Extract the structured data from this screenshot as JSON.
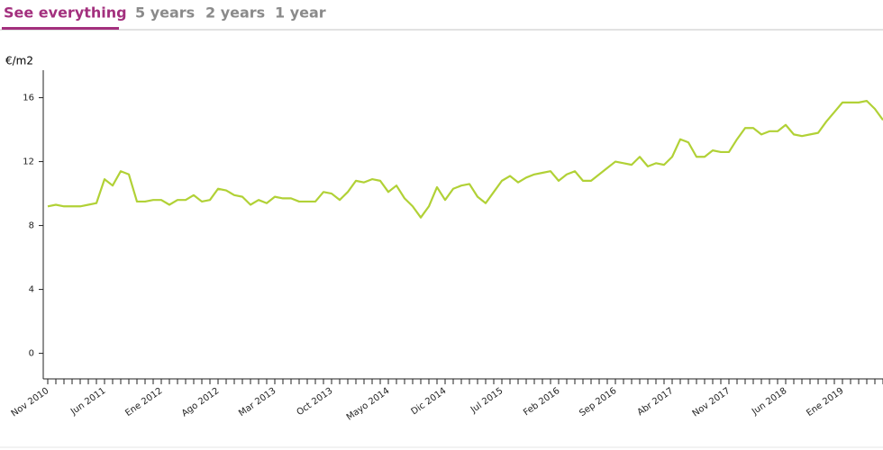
{
  "tabs": [
    "See everything",
    "5 years",
    "2 years",
    "1 year"
  ],
  "chart_data": {
    "type": "line",
    "ylabel": "€/m2",
    "categories": [
      "Nov 2010",
      null,
      null,
      null,
      null,
      null,
      null,
      "Jun 2011",
      null,
      null,
      null,
      null,
      null,
      null,
      "Ene 2012",
      null,
      null,
      null,
      null,
      null,
      null,
      "Ago 2012",
      null,
      null,
      null,
      null,
      null,
      null,
      "Mar 2013",
      null,
      null,
      null,
      null,
      null,
      null,
      "Oct 2013",
      null,
      null,
      null,
      null,
      null,
      null,
      "Mayo 2014",
      null,
      null,
      null,
      null,
      null,
      null,
      "Dic 2014",
      null,
      null,
      null,
      null,
      null,
      null,
      "Jul 2015",
      null,
      null,
      null,
      null,
      null,
      null,
      "Feb 2016",
      null,
      null,
      null,
      null,
      null,
      null,
      "Sep 2016",
      null,
      null,
      null,
      null,
      null,
      null,
      "Abr 2017",
      null,
      null,
      null,
      null,
      null,
      null,
      "Nov 2017",
      null,
      null,
      null,
      null,
      null,
      null,
      "Jun 2018",
      null,
      null,
      null,
      null,
      null,
      null,
      "Ene 2019",
      null,
      null,
      null,
      null,
      null
    ],
    "series": [
      {
        "color": "#b1d136",
        "values": [
          9.2,
          9.3,
          9.2,
          9.2,
          9.2,
          9.3,
          9.4,
          10.9,
          10.5,
          11.4,
          11.2,
          9.5,
          9.5,
          9.6,
          9.6,
          9.3,
          9.6,
          9.6,
          9.9,
          9.5,
          9.6,
          10.3,
          10.2,
          9.9,
          9.8,
          9.3,
          9.6,
          9.4,
          9.8,
          9.7,
          9.7,
          9.5,
          9.5,
          9.5,
          10.1,
          10.0,
          9.6,
          10.1,
          10.8,
          10.7,
          10.9,
          10.8,
          10.1,
          10.5,
          9.7,
          9.2,
          8.5,
          9.2,
          10.4,
          9.6,
          10.3,
          10.5,
          10.6,
          9.8,
          9.4,
          10.1,
          10.8,
          11.1,
          10.7,
          11.0,
          11.2,
          11.3,
          11.4,
          10.8,
          11.2,
          11.4,
          10.8,
          10.8,
          11.2,
          11.6,
          12.0,
          11.9,
          11.8,
          12.3,
          11.7,
          11.9,
          11.8,
          12.3,
          13.4,
          13.2,
          12.3,
          12.3,
          12.7,
          12.6,
          12.6,
          13.4,
          14.1,
          14.1,
          13.7,
          13.9,
          13.9,
          14.3,
          13.7,
          13.6,
          13.7,
          13.8,
          14.5,
          15.1,
          15.7,
          15.7,
          15.7,
          15.8,
          15.3,
          14.6
        ]
      }
    ],
    "ylim": [
      -1.6,
      18.2
    ],
    "yticks": [
      0,
      4,
      8,
      12,
      16
    ]
  }
}
